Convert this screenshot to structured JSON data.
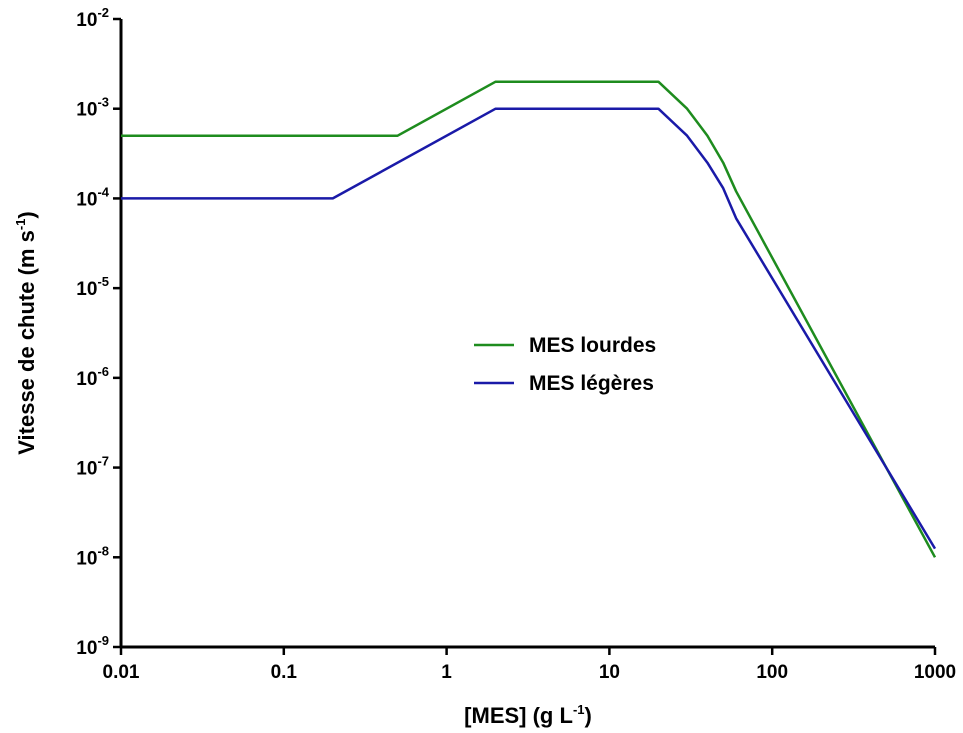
{
  "chart_data": {
    "type": "line",
    "xlabel": {
      "base": "[MES] (g L",
      "sup": "-1",
      "tail": ")"
    },
    "ylabel": {
      "base": "Vitesse de chute (m s",
      "sup": "-1",
      "tail": ")"
    },
    "x_scale": "log",
    "y_scale": "log",
    "xlim": [
      0.01,
      1000
    ],
    "ylim": [
      1e-09,
      0.01
    ],
    "grid": false,
    "legend_position": "center",
    "x_ticks": [
      {
        "value": 0.01,
        "label": "0.01"
      },
      {
        "value": 0.1,
        "label": "0.1"
      },
      {
        "value": 1,
        "label": "1"
      },
      {
        "value": 10,
        "label": "10"
      },
      {
        "value": 100,
        "label": "100"
      },
      {
        "value": 1000,
        "label": "1000"
      }
    ],
    "y_ticks": [
      {
        "value": 0.01,
        "base": "10",
        "exp": "-2"
      },
      {
        "value": 0.001,
        "base": "10",
        "exp": "-3"
      },
      {
        "value": 0.0001,
        "base": "10",
        "exp": "-4"
      },
      {
        "value": 1e-05,
        "base": "10",
        "exp": "-5"
      },
      {
        "value": 1e-06,
        "base": "10",
        "exp": "-6"
      },
      {
        "value": 1e-07,
        "base": "10",
        "exp": "-7"
      },
      {
        "value": 1e-08,
        "base": "10",
        "exp": "-8"
      },
      {
        "value": 1e-09,
        "base": "10",
        "exp": "-9"
      }
    ],
    "series": [
      {
        "name": "MES lourdes",
        "color": "#1e8c1e",
        "x": [
          0.01,
          0.5,
          2,
          20,
          30,
          40,
          50,
          60,
          1000
        ],
        "y": [
          0.0005,
          0.0005,
          0.002,
          0.002,
          0.001,
          0.0005,
          0.00025,
          0.00012,
          1e-08
        ]
      },
      {
        "name": "MES légères",
        "color": "#1a1aa8",
        "x": [
          0.01,
          0.2,
          2,
          20,
          30,
          40,
          50,
          60,
          1000
        ],
        "y": [
          0.0001,
          0.0001,
          0.001,
          0.001,
          0.0005,
          0.00025,
          0.00013,
          6e-05,
          1.25e-08
        ]
      }
    ]
  }
}
